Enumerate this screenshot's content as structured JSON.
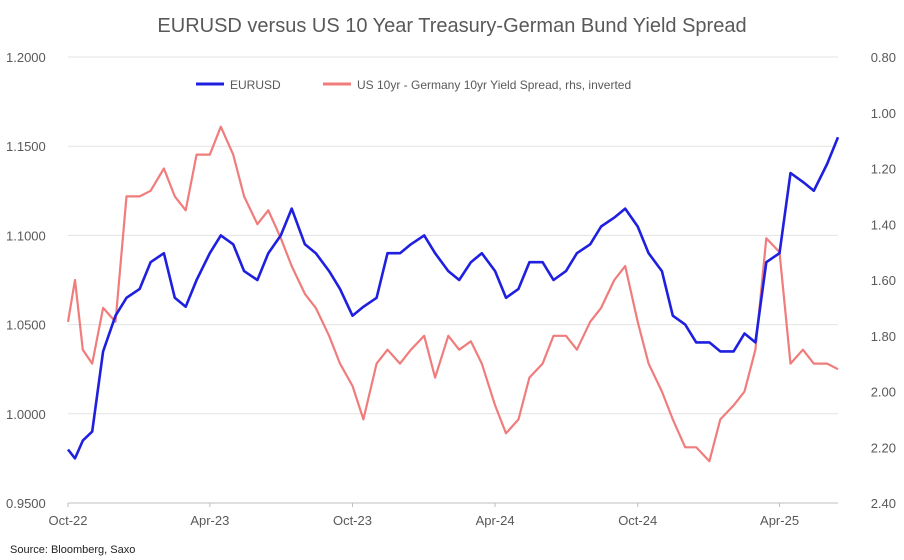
{
  "chart_data": {
    "type": "line",
    "title": "EURUSD versus US 10 Year Treasury-German Bund Yield Spread",
    "source": "Source: Bloomberg, Saxo",
    "legend_position": "top",
    "x_tick_labels": [
      "Oct-22",
      "Apr-23",
      "Oct-23",
      "Apr-24",
      "Oct-24",
      "Apr-25"
    ],
    "x_tick_dates": [
      "2022-10-01",
      "2023-04-01",
      "2023-10-01",
      "2024-04-01",
      "2024-10-01",
      "2025-04-01"
    ],
    "x_range": [
      "2022-10-01",
      "2025-06-15"
    ],
    "y_left": {
      "label": "",
      "range": [
        0.95,
        1.2
      ],
      "ticks": [
        "1.2000",
        "1.1500",
        "1.1000",
        "1.0500",
        "1.0000",
        "0.9500"
      ],
      "tick_values": [
        1.2,
        1.15,
        1.1,
        1.05,
        1.0,
        0.95
      ]
    },
    "y_right": {
      "label": "",
      "inverted": true,
      "range": [
        0.8,
        2.4
      ],
      "ticks": [
        "0.80",
        "1.00",
        "1.20",
        "1.40",
        "1.60",
        "1.80",
        "2.00",
        "2.20",
        "2.40"
      ],
      "tick_values": [
        0.8,
        1.0,
        1.2,
        1.4,
        1.6,
        1.8,
        2.0,
        2.2,
        2.4
      ]
    },
    "series": [
      {
        "name": "EURUSD",
        "axis": "left",
        "color": "#1f1fe0",
        "x": [
          "2022-10-01",
          "2022-10-10",
          "2022-10-20",
          "2022-11-01",
          "2022-11-15",
          "2022-12-01",
          "2022-12-15",
          "2023-01-01",
          "2023-01-15",
          "2023-02-01",
          "2023-02-15",
          "2023-03-01",
          "2023-03-15",
          "2023-04-01",
          "2023-04-15",
          "2023-05-01",
          "2023-05-15",
          "2023-06-01",
          "2023-06-15",
          "2023-07-01",
          "2023-07-15",
          "2023-08-01",
          "2023-08-15",
          "2023-09-01",
          "2023-09-15",
          "2023-10-01",
          "2023-10-15",
          "2023-11-01",
          "2023-11-15",
          "2023-12-01",
          "2023-12-15",
          "2024-01-01",
          "2024-01-15",
          "2024-02-01",
          "2024-02-15",
          "2024-03-01",
          "2024-03-15",
          "2024-04-01",
          "2024-04-15",
          "2024-05-01",
          "2024-05-15",
          "2024-06-01",
          "2024-06-15",
          "2024-07-01",
          "2024-07-15",
          "2024-08-01",
          "2024-08-15",
          "2024-09-01",
          "2024-09-15",
          "2024-10-01",
          "2024-10-15",
          "2024-11-01",
          "2024-11-15",
          "2024-12-01",
          "2024-12-15",
          "2025-01-01",
          "2025-01-15",
          "2025-02-01",
          "2025-02-15",
          "2025-03-01",
          "2025-03-15",
          "2025-04-01",
          "2025-04-15",
          "2025-05-01",
          "2025-05-15",
          "2025-06-01",
          "2025-06-15"
        ],
        "values": [
          0.98,
          0.975,
          0.985,
          0.99,
          1.035,
          1.055,
          1.065,
          1.07,
          1.085,
          1.09,
          1.065,
          1.06,
          1.075,
          1.09,
          1.1,
          1.095,
          1.08,
          1.075,
          1.09,
          1.1,
          1.115,
          1.095,
          1.09,
          1.08,
          1.07,
          1.055,
          1.06,
          1.065,
          1.09,
          1.09,
          1.095,
          1.1,
          1.09,
          1.08,
          1.075,
          1.085,
          1.09,
          1.08,
          1.065,
          1.07,
          1.085,
          1.085,
          1.075,
          1.08,
          1.09,
          1.095,
          1.105,
          1.11,
          1.115,
          1.105,
          1.09,
          1.08,
          1.055,
          1.05,
          1.04,
          1.04,
          1.035,
          1.035,
          1.045,
          1.04,
          1.085,
          1.09,
          1.135,
          1.13,
          1.125,
          1.14,
          1.155
        ]
      },
      {
        "name": "US 10yr - Germany 10yr Yield Spread, rhs, inverted",
        "axis": "right",
        "color": "#f07c7c",
        "x": [
          "2022-10-01",
          "2022-10-10",
          "2022-10-20",
          "2022-11-01",
          "2022-11-15",
          "2022-12-01",
          "2022-12-15",
          "2023-01-01",
          "2023-01-15",
          "2023-02-01",
          "2023-02-15",
          "2023-03-01",
          "2023-03-15",
          "2023-04-01",
          "2023-04-15",
          "2023-05-01",
          "2023-05-15",
          "2023-06-01",
          "2023-06-15",
          "2023-07-01",
          "2023-07-15",
          "2023-08-01",
          "2023-08-15",
          "2023-09-01",
          "2023-09-15",
          "2023-10-01",
          "2023-10-15",
          "2023-11-01",
          "2023-11-15",
          "2023-12-01",
          "2023-12-15",
          "2024-01-01",
          "2024-01-15",
          "2024-02-01",
          "2024-02-15",
          "2024-03-01",
          "2024-03-15",
          "2024-04-01",
          "2024-04-15",
          "2024-05-01",
          "2024-05-15",
          "2024-06-01",
          "2024-06-15",
          "2024-07-01",
          "2024-07-15",
          "2024-08-01",
          "2024-08-15",
          "2024-09-01",
          "2024-09-15",
          "2024-10-01",
          "2024-10-15",
          "2024-11-01",
          "2024-11-15",
          "2024-12-01",
          "2024-12-15",
          "2025-01-01",
          "2025-01-15",
          "2025-02-01",
          "2025-02-15",
          "2025-03-01",
          "2025-03-15",
          "2025-04-01",
          "2025-04-15",
          "2025-05-01",
          "2025-05-15",
          "2025-06-01",
          "2025-06-15"
        ],
        "values": [
          1.75,
          1.6,
          1.85,
          1.9,
          1.7,
          1.75,
          1.3,
          1.3,
          1.28,
          1.2,
          1.3,
          1.35,
          1.15,
          1.15,
          1.05,
          1.15,
          1.3,
          1.4,
          1.35,
          1.45,
          1.55,
          1.65,
          1.7,
          1.8,
          1.9,
          1.98,
          2.1,
          1.9,
          1.85,
          1.9,
          1.85,
          1.8,
          1.95,
          1.8,
          1.85,
          1.82,
          1.9,
          2.05,
          2.15,
          2.1,
          1.95,
          1.9,
          1.8,
          1.8,
          1.85,
          1.75,
          1.7,
          1.6,
          1.55,
          1.75,
          1.9,
          2.0,
          2.1,
          2.2,
          2.2,
          2.25,
          2.1,
          2.05,
          2.0,
          1.85,
          1.45,
          1.5,
          1.9,
          1.85,
          1.9,
          1.9,
          1.92
        ]
      }
    ]
  }
}
